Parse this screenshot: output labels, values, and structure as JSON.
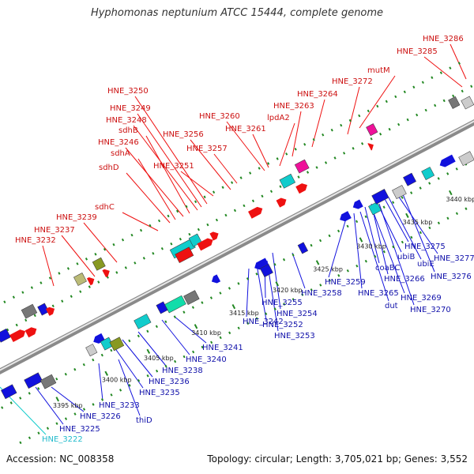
{
  "title": "Hyphomonas neptunium ATCC 15444, complete genome",
  "footer": {
    "accession": "Accession: NC_008358",
    "summary": "Topology: circular; Length: 3,705,021 bp; Genes: 3,552"
  },
  "colors": {
    "red": "#ee1111",
    "blue": "#1111dd",
    "cyan": "#11cccc",
    "magenta": "#ee1199",
    "gray": "#777777",
    "lightgray": "#cccccc",
    "olive": "#889922",
    "tan": "#bbbb77",
    "teal": "#11ddaa",
    "green_dots": "#228822"
  },
  "ticks": [
    {
      "label": "3395 kbp"
    },
    {
      "label": "3400 kbp"
    },
    {
      "label": "3405 kbp"
    },
    {
      "label": "3410 kbp"
    },
    {
      "label": "3415 kbp"
    },
    {
      "label": "3420 kbp"
    },
    {
      "label": "3425 kbp"
    },
    {
      "label": "3430 kbp"
    },
    {
      "label": "3435 kbp"
    },
    {
      "label": "3440 kbp"
    }
  ],
  "labels_top": [
    {
      "text": "HNE_3286"
    },
    {
      "text": "HNE_3285"
    },
    {
      "text": "mutM"
    },
    {
      "text": "HNE_3272"
    },
    {
      "text": "HNE_3264"
    },
    {
      "text": "HNE_3263"
    },
    {
      "text": "lpdA2"
    },
    {
      "text": "HNE_3260"
    },
    {
      "text": "HNE_3261"
    },
    {
      "text": "HNE_3250"
    },
    {
      "text": "HNE_3249"
    },
    {
      "text": "HNE_3248"
    },
    {
      "text": "sdhB"
    },
    {
      "text": "HNE_3256"
    },
    {
      "text": "HNE_3246"
    },
    {
      "text": "sdhA"
    },
    {
      "text": "HNE_3257"
    },
    {
      "text": "HNE_3251"
    },
    {
      "text": "sdhD"
    },
    {
      "text": "sdhC"
    },
    {
      "text": "HNE_3239"
    },
    {
      "text": "HNE_3237"
    },
    {
      "text": "HNE_3232"
    }
  ],
  "labels_bottom": [
    {
      "text": "HNE_3275"
    },
    {
      "text": "HNE_3277"
    },
    {
      "text": "ubiB"
    },
    {
      "text": "ubiE"
    },
    {
      "text": "coaBC"
    },
    {
      "text": "HNE_3276"
    },
    {
      "text": "HNE_3266"
    },
    {
      "text": "HNE_3259"
    },
    {
      "text": "HNE_3258"
    },
    {
      "text": "HNE_3265"
    },
    {
      "text": "HNE_3269"
    },
    {
      "text": "dut"
    },
    {
      "text": "HNE_3270"
    },
    {
      "text": "HNE_3255"
    },
    {
      "text": "HNE_3254"
    },
    {
      "text": "HNE_3242"
    },
    {
      "text": "HNE_3252"
    },
    {
      "text": "HNE_3253"
    },
    {
      "text": "HNE_3241"
    },
    {
      "text": "HNE_3240"
    },
    {
      "text": "HNE_3238"
    },
    {
      "text": "HNE_3236"
    },
    {
      "text": "HNE_3235"
    },
    {
      "text": "HNE_3233"
    },
    {
      "text": "thiD"
    },
    {
      "text": "HNE_3226"
    },
    {
      "text": "HNE_3225"
    },
    {
      "text": "HNE_3222"
    }
  ]
}
